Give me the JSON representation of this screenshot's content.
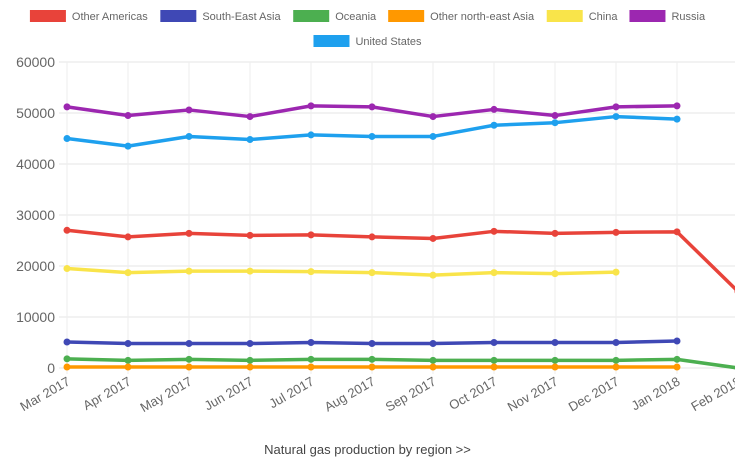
{
  "footer": {
    "link_text": "Natural gas production by region >>"
  },
  "chart_data": {
    "type": "line",
    "categories": [
      "Mar 2017",
      "Apr 2017",
      "May 2017",
      "Jun 2017",
      "Jul 2017",
      "Aug 2017",
      "Sep 2017",
      "Oct 2017",
      "Nov 2017",
      "Dec 2017",
      "Jan 2018",
      "Feb 2018"
    ],
    "ylim": [
      0,
      60000
    ],
    "yticks": [
      0,
      10000,
      20000,
      30000,
      40000,
      50000,
      60000
    ],
    "grid": true,
    "legend_position": "top",
    "series": [
      {
        "name": "Other Americas",
        "color": "#e8433a",
        "values": [
          27000,
          25700,
          26400,
          26000,
          26100,
          25700,
          25400,
          26800,
          26400,
          26600,
          26700,
          15000
        ]
      },
      {
        "name": "South-East Asia",
        "color": "#3f48b5",
        "values": [
          5100,
          4800,
          4800,
          4800,
          5000,
          4800,
          4800,
          5000,
          5000,
          5000,
          5300,
          null
        ]
      },
      {
        "name": "Oceania",
        "color": "#4caf50",
        "values": [
          1800,
          1500,
          1700,
          1500,
          1700,
          1700,
          1500,
          1500,
          1500,
          1500,
          1700,
          0
        ]
      },
      {
        "name": "Other north-east Asia",
        "color": "#ff9800",
        "values": [
          200,
          200,
          200,
          200,
          200,
          200,
          200,
          200,
          200,
          200,
          200,
          null
        ]
      },
      {
        "name": "China",
        "color": "#f9e44a",
        "values": [
          19500,
          18700,
          19000,
          19000,
          18900,
          18700,
          18200,
          18700,
          18500,
          18800,
          null,
          null
        ]
      },
      {
        "name": "Russia",
        "color": "#9c27b0",
        "values": [
          51200,
          49500,
          50600,
          49300,
          51400,
          51200,
          49300,
          50700,
          49500,
          51200,
          51400,
          null
        ]
      },
      {
        "name": "United States",
        "color": "#1ea0ee",
        "values": [
          45000,
          43500,
          45400,
          44800,
          45700,
          45400,
          45400,
          47600,
          48100,
          49300,
          48800,
          null
        ]
      }
    ]
  }
}
